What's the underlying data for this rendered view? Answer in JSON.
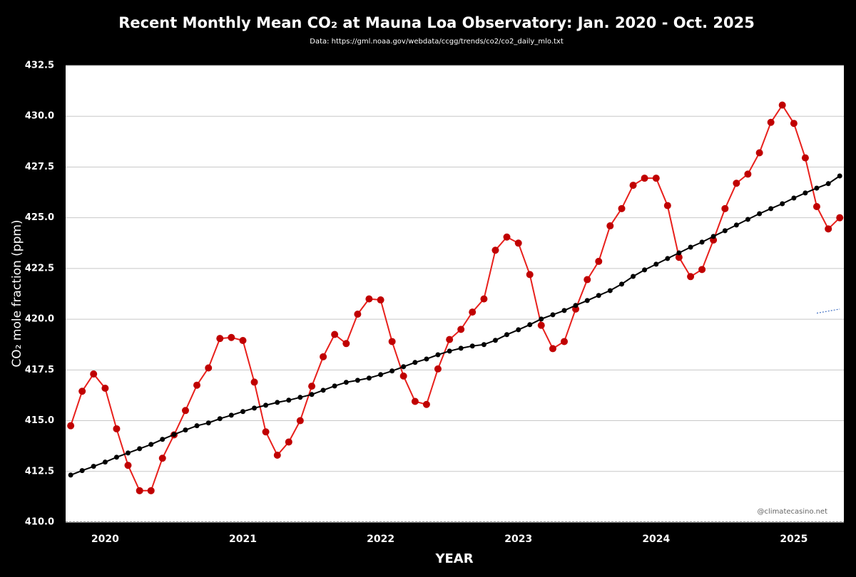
{
  "chart_data": {
    "type": "line",
    "title": "Recent Monthly Mean CO₂ at Mauna Loa Observatory: Jan. 2020 - Oct. 2025",
    "subtitle": "Data: https://gml.noaa.gov/webdata/ccgg/trends/co2/co2_daily_mlo.txt",
    "ylabel": "CO₂ mole fraction (ppm)",
    "xlabel": "YEAR",
    "annotation": "@climatecasino.net",
    "x": [
      2020.167,
      2020.25,
      2020.333,
      2020.417,
      2020.5,
      2020.583,
      2020.667,
      2020.75,
      2020.833,
      2020.917,
      2021.0,
      2021.083,
      2021.167,
      2021.25,
      2021.333,
      2021.417,
      2021.5,
      2021.583,
      2021.667,
      2021.75,
      2021.833,
      2021.917,
      2022.0,
      2022.083,
      2022.167,
      2022.25,
      2022.333,
      2022.417,
      2022.5,
      2022.583,
      2022.667,
      2022.75,
      2022.833,
      2022.917,
      2023.0,
      2023.083,
      2023.167,
      2023.25,
      2023.333,
      2023.417,
      2023.5,
      2023.583,
      2023.667,
      2023.75,
      2023.833,
      2023.917,
      2024.0,
      2024.083,
      2024.167,
      2024.25,
      2024.333,
      2024.417,
      2024.5,
      2024.583,
      2024.667,
      2024.75,
      2024.833,
      2024.917,
      2025.0,
      2025.083,
      2025.167,
      2025.25,
      2025.333,
      2025.417,
      2025.5,
      2025.583,
      2025.667,
      2025.75
    ],
    "series": [
      {
        "color": "#e8201c",
        "marker_color": "#c00000",
        "values": [
          414.75,
          416.45,
          417.3,
          416.6,
          414.6,
          412.8,
          411.55,
          411.55,
          413.15,
          414.3,
          415.5,
          416.75,
          417.6,
          419.05,
          419.1,
          418.95,
          416.9,
          414.45,
          413.3,
          413.95,
          415.0,
          416.7,
          418.15,
          419.25,
          418.8,
          420.25,
          421.0,
          420.95,
          418.9,
          417.2,
          415.95,
          415.8,
          417.55,
          419.0,
          419.5,
          420.35,
          421.0,
          423.4,
          424.05,
          423.75,
          422.2,
          419.7,
          418.55,
          418.9,
          420.5,
          421.95,
          422.85,
          424.6,
          425.45,
          426.6,
          426.95,
          426.95,
          425.6,
          423.05,
          422.1,
          422.45,
          423.9,
          425.45,
          426.7,
          427.15,
          428.2,
          429.7,
          430.55,
          429.65,
          427.95,
          425.55,
          424.45,
          425.0
        ]
      },
      {
        "color": "#000000",
        "marker_color": "#000000",
        "values": [
          412.32,
          412.54,
          412.75,
          412.96,
          413.2,
          413.41,
          413.62,
          413.83,
          414.08,
          414.32,
          414.54,
          414.75,
          414.89,
          415.1,
          415.27,
          415.45,
          415.62,
          415.76,
          415.9,
          416.01,
          416.15,
          416.29,
          416.5,
          416.71,
          416.89,
          416.99,
          417.1,
          417.27,
          417.45,
          417.66,
          417.87,
          418.04,
          418.25,
          418.43,
          418.57,
          418.68,
          418.75,
          418.96,
          419.24,
          419.48,
          419.73,
          420.01,
          420.22,
          420.43,
          420.68,
          420.92,
          421.17,
          421.41,
          421.73,
          422.11,
          422.43,
          422.71,
          422.99,
          423.27,
          423.55,
          423.8,
          424.08,
          424.36,
          424.64,
          424.92,
          425.2,
          425.45,
          425.69,
          425.97,
          426.22,
          426.46,
          426.68,
          427.06
        ]
      },
      {
        "color": "#4472c4",
        "dashed": true,
        "x": [
          2025.583,
          2025.75
        ],
        "values": [
          420.3,
          420.5
        ]
      }
    ],
    "xlim": [
      2020.13,
      2025.78
    ],
    "xticks": [
      {
        "value": 2020.417,
        "label": "2020"
      },
      {
        "value": 2021.417,
        "label": "2021"
      },
      {
        "value": 2022.417,
        "label": "2022"
      },
      {
        "value": 2023.417,
        "label": "2023"
      },
      {
        "value": 2024.417,
        "label": "2024"
      },
      {
        "value": 2025.417,
        "label": "2025"
      }
    ],
    "ylim": [
      410,
      432.5
    ],
    "yticks": [
      {
        "value": 410,
        "label": "410.0"
      },
      412.5,
      {
        "value": 415,
        "label": "415.0"
      },
      417.5,
      {
        "value": 420,
        "label": "420.0"
      },
      422.5,
      {
        "value": 425,
        "label": "425.0"
      },
      427.5,
      {
        "value": 430,
        "label": "430.0"
      },
      432.5
    ],
    "grid": true
  }
}
